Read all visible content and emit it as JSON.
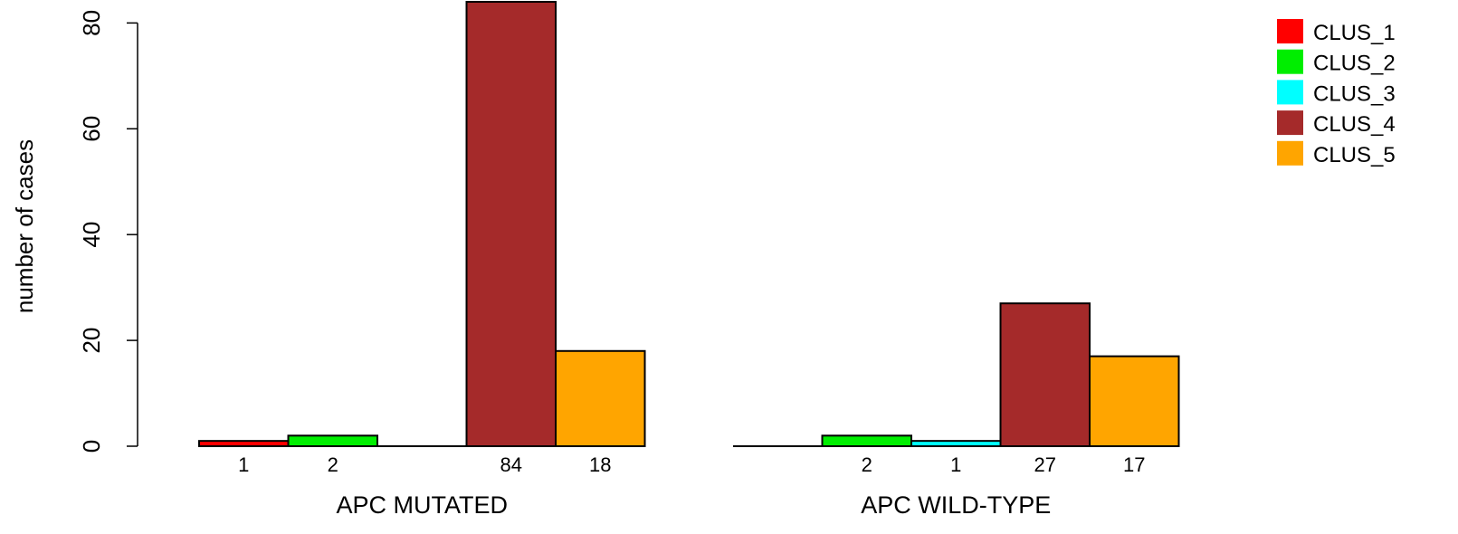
{
  "chart_data": {
    "type": "bar",
    "ylabel": "number of cases",
    "ylim": [
      0,
      84
    ],
    "yticks": [
      0,
      20,
      40,
      60,
      80
    ],
    "grid": false,
    "legend_position": "top-right",
    "groups": [
      {
        "label": "APC MUTATED",
        "values": [
          1,
          2,
          0,
          84,
          18
        ],
        "value_labels": [
          "1",
          "2",
          "",
          "84",
          "18"
        ]
      },
      {
        "label": "APC WILD-TYPE",
        "values": [
          0,
          2,
          1,
          27,
          17
        ],
        "value_labels": [
          "",
          "2",
          "1",
          "27",
          "17"
        ]
      }
    ],
    "series": [
      {
        "name": "CLUS_1",
        "color": "#ff0000"
      },
      {
        "name": "CLUS_2",
        "color": "#00ee00"
      },
      {
        "name": "CLUS_3",
        "color": "#00ffff"
      },
      {
        "name": "CLUS_4",
        "color": "#a52a2a"
      },
      {
        "name": "CLUS_5",
        "color": "#ffa500"
      }
    ]
  }
}
